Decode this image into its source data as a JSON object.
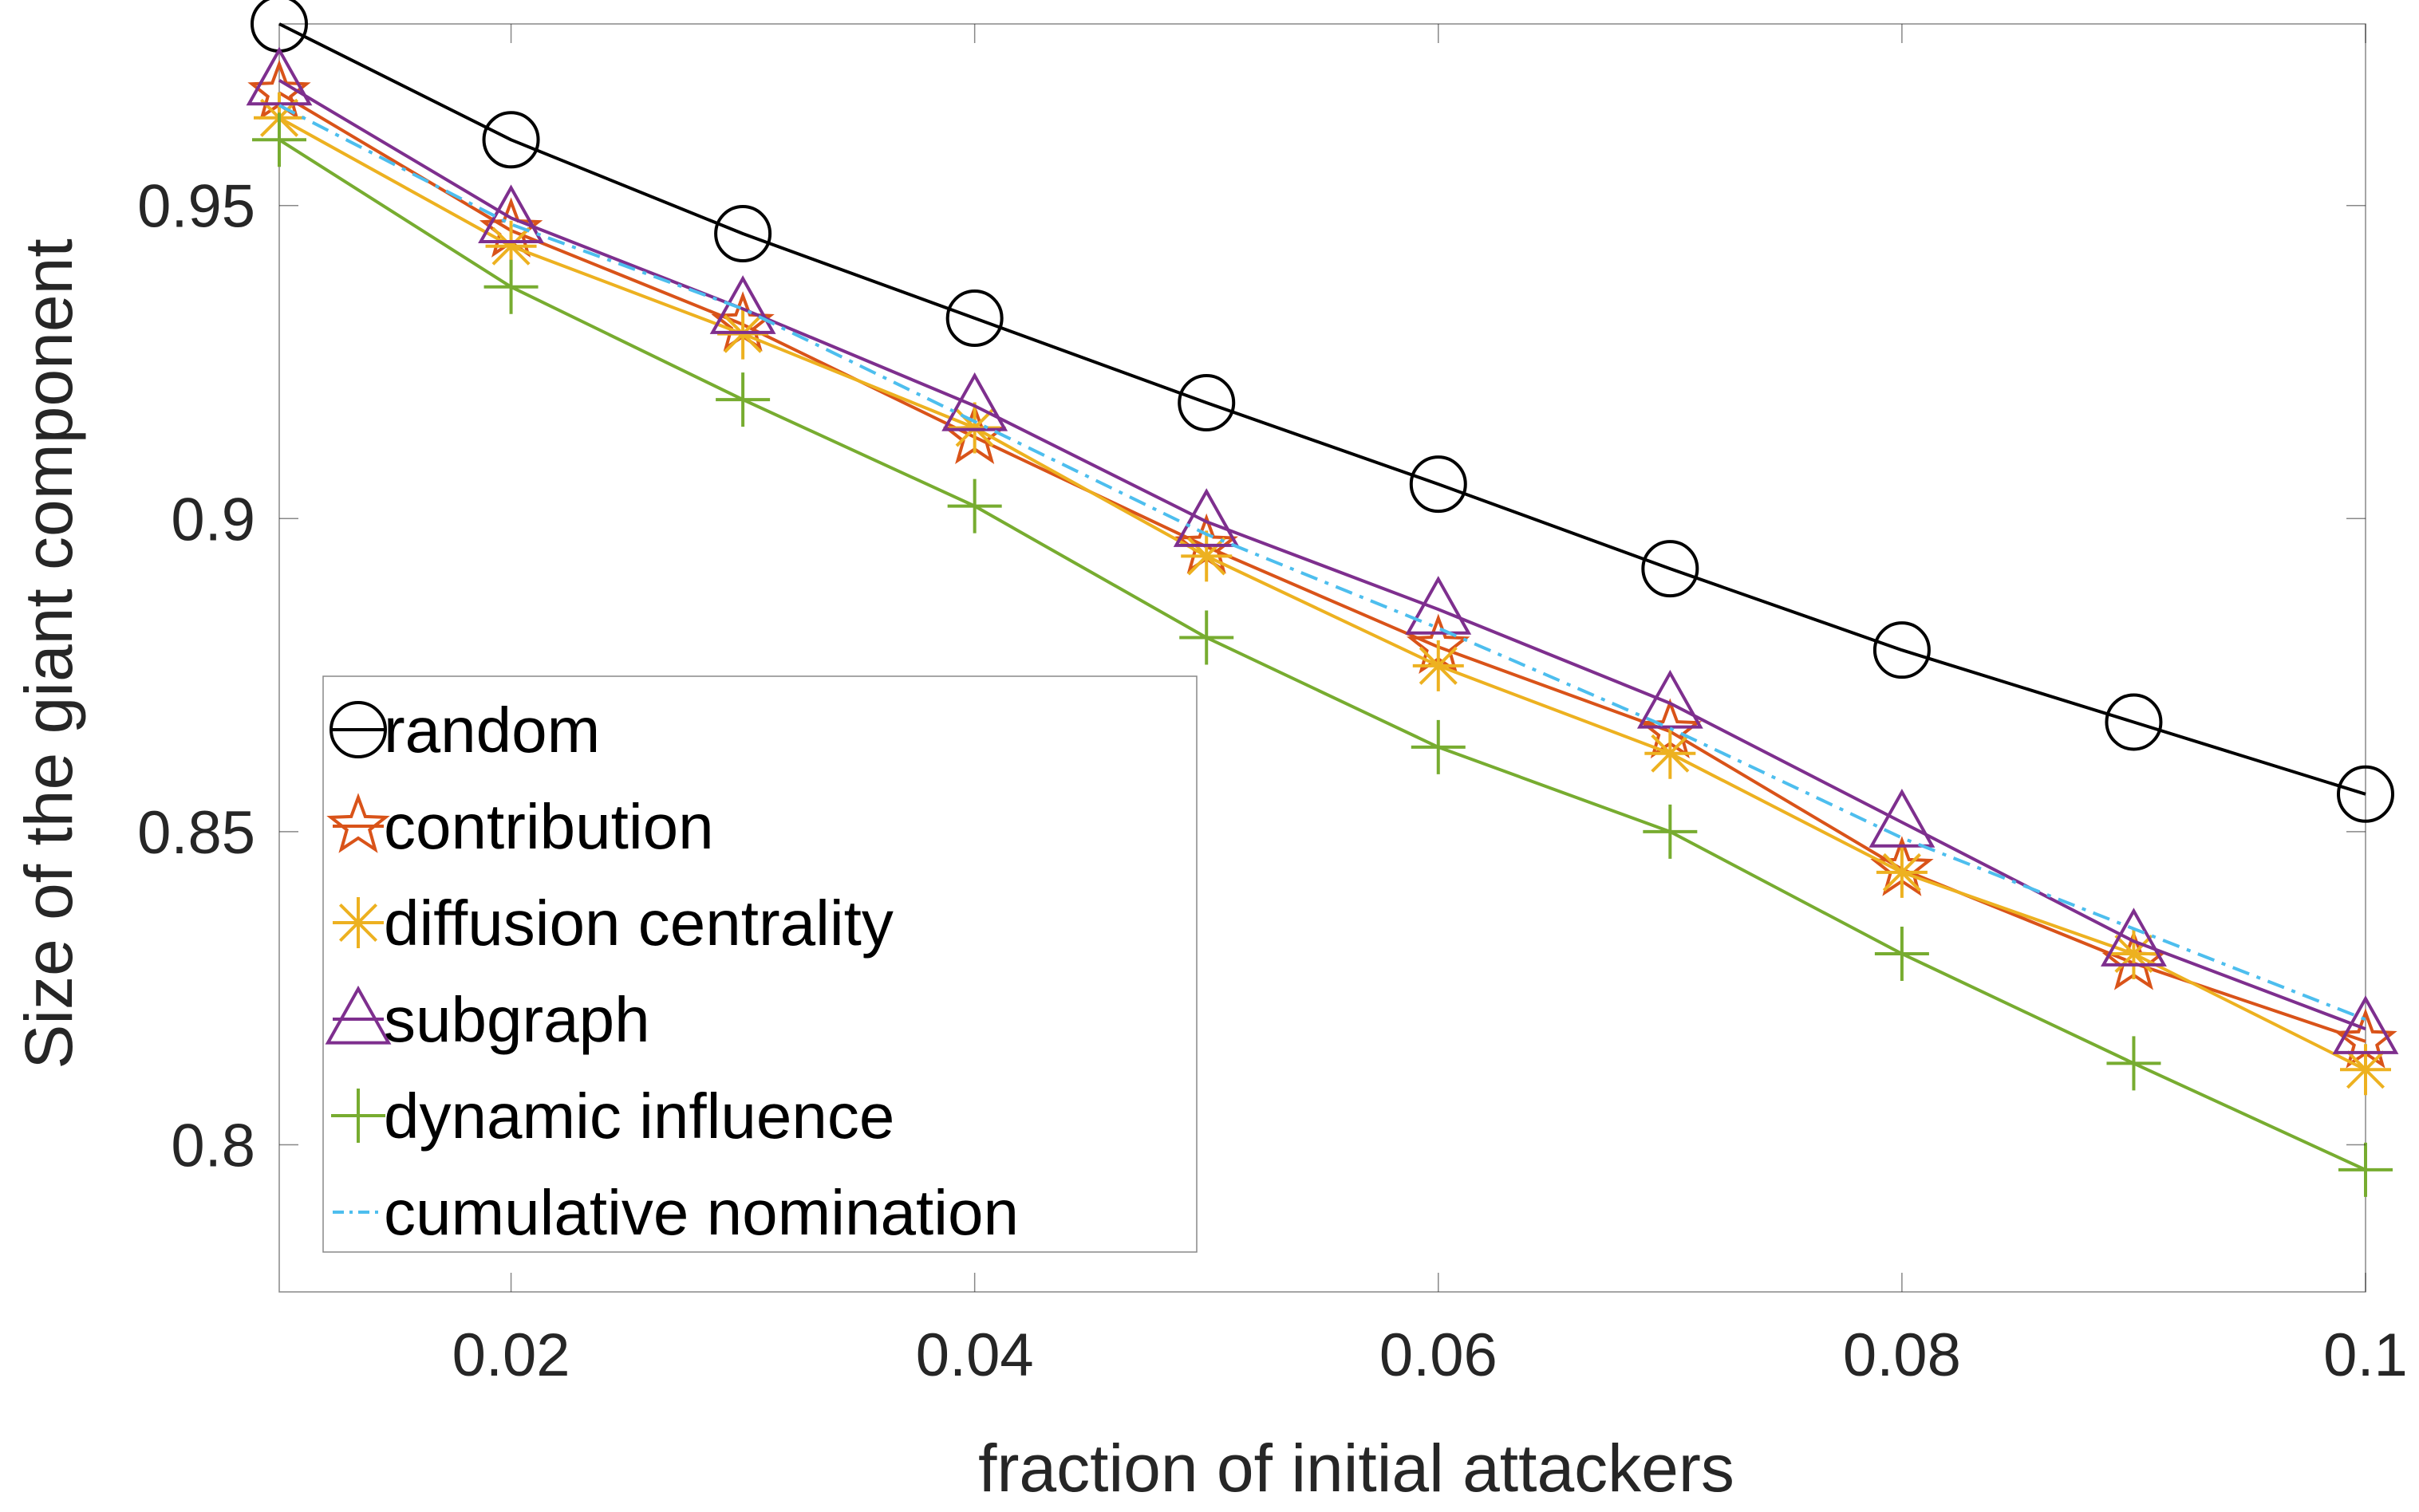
{
  "chart_data": {
    "type": "line",
    "title": "",
    "xlabel": "fraction of initial attackers",
    "ylabel": "Size of the giant component",
    "xlim": [
      0.01,
      0.1
    ],
    "ylim": [
      0.7765,
      0.979
    ],
    "xticks": [
      0.02,
      0.04,
      0.06,
      0.08,
      0.1
    ],
    "xtick_labels": [
      "0.02",
      "0.04",
      "0.06",
      "0.08",
      "0.1"
    ],
    "yticks": [
      0.8,
      0.85,
      0.9,
      0.95
    ],
    "ytick_labels": [
      "0.8",
      "0.85",
      "0.9",
      "0.95"
    ],
    "grid": false,
    "legend_position": "bottom-left",
    "x": [
      0.01,
      0.02,
      0.03,
      0.04,
      0.05,
      0.06,
      0.07,
      0.08,
      0.09,
      0.1
    ],
    "series": [
      {
        "name": "random",
        "color": "#000000",
        "marker": "circle",
        "line": "solid",
        "values": [
          0.979,
          0.9605,
          0.9455,
          0.932,
          0.9185,
          0.9055,
          0.892,
          0.879,
          0.8675,
          0.856
        ]
      },
      {
        "name": "contribution",
        "color": "#D95319",
        "marker": "star",
        "line": "solid",
        "values": [
          0.968,
          0.946,
          0.931,
          0.913,
          0.8955,
          0.8795,
          0.866,
          0.844,
          0.829,
          0.8165
        ]
      },
      {
        "name": "diffusion centrality",
        "color": "#EDB120",
        "marker": "asterisk",
        "line": "solid",
        "values": [
          0.964,
          0.9435,
          0.9295,
          0.9145,
          0.894,
          0.8765,
          0.8625,
          0.8435,
          0.8305,
          0.812
        ]
      },
      {
        "name": "subgraph",
        "color": "#7E2F8E",
        "marker": "triangle",
        "line": "solid",
        "values": [
          0.97,
          0.948,
          0.9335,
          0.918,
          0.8995,
          0.8855,
          0.8705,
          0.8515,
          0.8325,
          0.8185
        ]
      },
      {
        "name": "dynamic influence",
        "color": "#77AC30",
        "marker": "plus",
        "line": "solid",
        "values": [
          0.9605,
          0.937,
          0.919,
          0.902,
          0.881,
          0.8635,
          0.85,
          0.8305,
          0.813,
          0.796
        ]
      },
      {
        "name": "cumulative nomination",
        "color": "#4DBEEE",
        "marker": "none",
        "line": "dashdot",
        "values": [
          0.966,
          0.947,
          0.9335,
          0.9155,
          0.8975,
          0.8825,
          0.8665,
          0.849,
          0.8345,
          0.82
        ]
      }
    ]
  }
}
